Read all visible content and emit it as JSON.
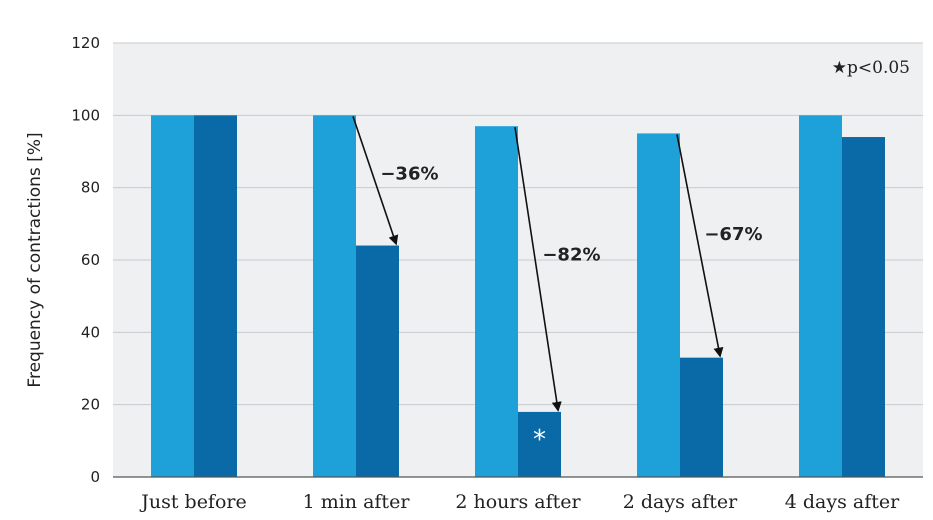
{
  "chart_data": {
    "type": "bar",
    "categories": [
      "Just before",
      "1 min after",
      "2 hours after",
      "2 days after",
      "4 days after"
    ],
    "series": [
      {
        "values": [
          100,
          100,
          97,
          95,
          100
        ],
        "color": "#1ea0d8"
      },
      {
        "values": [
          100,
          64,
          18,
          33,
          94
        ],
        "color": "#0a6aa8"
      }
    ],
    "ylabel": "Frequency of contractions [%]",
    "ylim": [
      0,
      120
    ],
    "yticks": [
      0,
      20,
      40,
      60,
      80,
      100,
      120
    ],
    "grid": true,
    "background": "#eef0f2",
    "annotations": [
      {
        "label": "−36%",
        "category_index": 1
      },
      {
        "label": "−82%",
        "category_index": 2
      },
      {
        "label": "−67%",
        "category_index": 3
      }
    ],
    "significance_marker": {
      "category_index": 2,
      "series_index": 1,
      "symbol": "*"
    },
    "legend_note": "★p<0.05",
    "legend_position": "top-right"
  }
}
